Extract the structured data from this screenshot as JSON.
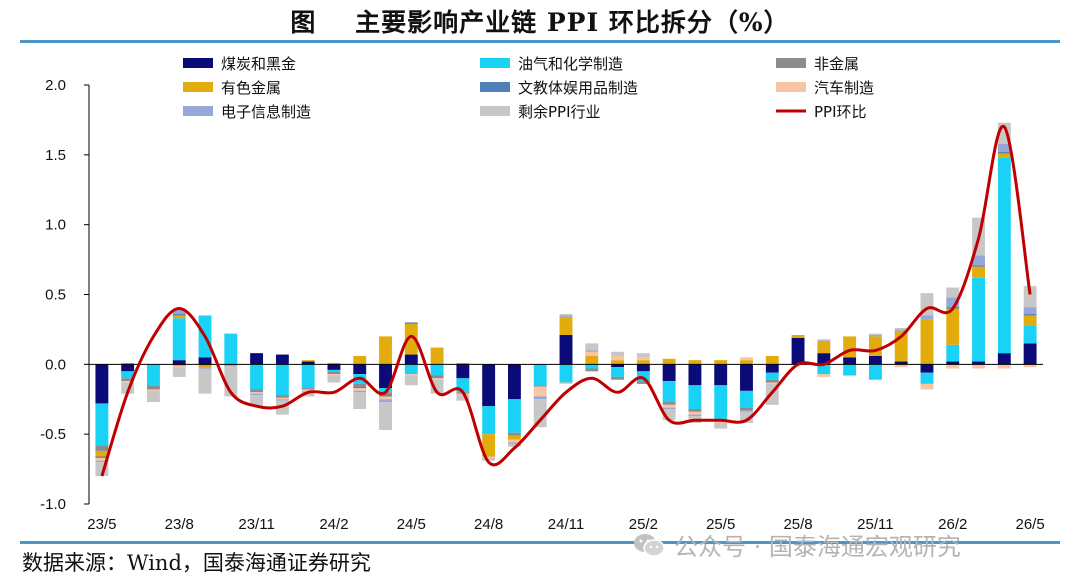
{
  "title": "图    主要影响产业链 PPI 环比拆分（%）",
  "source": "数据来源：Wind，国泰海通证券研究",
  "watermark": "公众号 · 国泰海通宏观研究",
  "colors": {
    "coal": "#0a0a78",
    "oil": "#19d2f5",
    "nonmetal": "#8c8c8c",
    "nonferrous": "#e2ad0c",
    "culture": "#4f81b8",
    "auto": "#f7c4a6",
    "electronics": "#97a7d8",
    "other": "#c7c7c7",
    "ppi": "#c00000"
  },
  "chart_data": {
    "type": "bar",
    "stacked": true,
    "ylim": [
      -1.0,
      2.0
    ],
    "yticks": [
      "2.0",
      "1.5",
      "1.0",
      "0.5",
      "0.0",
      "-0.5",
      "-1.0"
    ],
    "ytick_values": [
      2.0,
      1.5,
      1.0,
      0.5,
      0.0,
      -0.5,
      -1.0
    ],
    "categories": [
      "23/5",
      "23/6",
      "23/7",
      "23/8",
      "23/9",
      "23/10",
      "23/11",
      "23/12",
      "24/1",
      "24/2",
      "24/3",
      "24/4",
      "24/5",
      "24/6",
      "24/7",
      "24/8",
      "24/9",
      "24/10",
      "24/11",
      "24/12",
      "25/1",
      "25/2",
      "25/3",
      "25/4",
      "25/5",
      "25/6",
      "25/7",
      "25/8",
      "25/9",
      "25/10",
      "25/11",
      "25/12",
      "26/1",
      "26/2",
      "26/3",
      "26/4",
      "26/5"
    ],
    "x_tick_labels": [
      {
        "index": 0,
        "label": "23/5"
      },
      {
        "index": 3,
        "label": "23/8"
      },
      {
        "index": 6,
        "label": "23/11"
      },
      {
        "index": 9,
        "label": "24/2"
      },
      {
        "index": 12,
        "label": "24/5"
      },
      {
        "index": 15,
        "label": "24/8"
      },
      {
        "index": 18,
        "label": "24/11"
      },
      {
        "index": 21,
        "label": "25/2"
      },
      {
        "index": 24,
        "label": "25/5"
      },
      {
        "index": 27,
        "label": "25/8"
      },
      {
        "index": 30,
        "label": "25/11"
      },
      {
        "index": 33,
        "label": "26/2"
      },
      {
        "index": 36,
        "label": "26/5"
      }
    ],
    "legend_position": "top",
    "legend": [
      {
        "key": "coal",
        "label": "煤炭和黑金",
        "kind": "bar"
      },
      {
        "key": "oil",
        "label": "油气和化学制造",
        "kind": "bar"
      },
      {
        "key": "nonmetal",
        "label": "非金属",
        "kind": "bar"
      },
      {
        "key": "nonferrous",
        "label": "有色金属",
        "kind": "bar"
      },
      {
        "key": "culture",
        "label": "文教体娱用品制造",
        "kind": "bar"
      },
      {
        "key": "auto",
        "label": "汽车制造",
        "kind": "bar"
      },
      {
        "key": "electronics",
        "label": "电子信息制造",
        "kind": "bar"
      },
      {
        "key": "other",
        "label": "剩余PPI行业",
        "kind": "bar"
      },
      {
        "key": "ppi",
        "label": "PPI环比",
        "kind": "line"
      }
    ],
    "series": [
      {
        "key": "coal",
        "values": [
          -0.28,
          -0.05,
          0.0,
          0.03,
          0.05,
          0.0,
          0.08,
          0.07,
          0.02,
          -0.04,
          -0.07,
          -0.17,
          0.07,
          0.0,
          -0.1,
          -0.3,
          -0.25,
          0.0,
          0.21,
          0.0,
          -0.02,
          -0.05,
          -0.12,
          -0.15,
          -0.15,
          -0.19,
          -0.06,
          0.19,
          0.08,
          0.05,
          0.06,
          0.02,
          -0.06,
          0.02,
          0.02,
          0.08,
          0.15
        ]
      },
      {
        "key": "oil",
        "values": [
          -0.3,
          -0.05,
          -0.15,
          0.3,
          0.3,
          0.22,
          -0.18,
          -0.22,
          -0.17,
          -0.01,
          -0.07,
          -0.03,
          -0.07,
          -0.08,
          -0.1,
          -0.2,
          -0.24,
          -0.15,
          -0.13,
          -0.03,
          -0.07,
          -0.07,
          -0.15,
          -0.17,
          -0.24,
          -0.12,
          -0.05,
          0.0,
          -0.07,
          -0.08,
          -0.11,
          0.0,
          -0.08,
          0.12,
          0.6,
          1.4,
          0.13
        ]
      },
      {
        "key": "nonmetal",
        "values": [
          -0.04,
          -0.02,
          -0.03,
          -0.01,
          -0.01,
          -0.01,
          -0.02,
          -0.02,
          -0.01,
          -0.02,
          -0.02,
          -0.02,
          0.0,
          -0.02,
          -0.01,
          0.0,
          -0.02,
          -0.01,
          0.0,
          -0.02,
          -0.02,
          -0.02,
          -0.02,
          -0.02,
          -0.02,
          -0.02,
          -0.02,
          0.0,
          0.0,
          0.0,
          0.0,
          0.0,
          0.0,
          0.0,
          0.0,
          0.0,
          0.0
        ]
      },
      {
        "key": "nonferrous",
        "values": [
          -0.04,
          0.0,
          0.0,
          0.02,
          -0.01,
          0.0,
          0.0,
          0.0,
          0.01,
          0.01,
          0.06,
          0.2,
          0.22,
          0.12,
          0.01,
          -0.16,
          -0.03,
          0.0,
          0.13,
          0.06,
          0.03,
          0.03,
          0.04,
          0.03,
          0.03,
          0.03,
          0.06,
          0.02,
          0.08,
          0.15,
          0.14,
          0.22,
          0.32,
          0.26,
          0.08,
          0.03,
          0.07
        ]
      },
      {
        "key": "culture",
        "values": [
          -0.01,
          0.0,
          0.0,
          0.01,
          0.0,
          0.0,
          0.0,
          0.0,
          0.0,
          0.0,
          -0.01,
          -0.01,
          0.01,
          0.0,
          0.0,
          0.0,
          0.0,
          0.0,
          0.0,
          0.0,
          0.0,
          0.0,
          0.0,
          0.0,
          0.0,
          0.0,
          0.0,
          0.0,
          0.0,
          0.0,
          0.0,
          0.0,
          0.0,
          0.01,
          0.01,
          0.01,
          0.01
        ]
      },
      {
        "key": "auto",
        "values": [
          -0.02,
          -0.01,
          -0.01,
          -0.01,
          0.0,
          0.0,
          -0.01,
          -0.01,
          -0.01,
          -0.01,
          -0.02,
          -0.02,
          -0.01,
          -0.01,
          -0.01,
          -0.01,
          -0.02,
          -0.07,
          -0.01,
          0.03,
          0.03,
          0.02,
          -0.02,
          -0.02,
          -0.01,
          0.02,
          -0.01,
          0.0,
          -0.02,
          0.0,
          0.0,
          -0.02,
          -0.04,
          -0.03,
          -0.03,
          -0.03,
          -0.02
        ]
      },
      {
        "key": "electronics",
        "values": [
          -0.01,
          0.01,
          0.0,
          0.03,
          -0.01,
          0.0,
          -0.01,
          -0.01,
          0.0,
          0.0,
          -0.01,
          -0.02,
          0.0,
          0.0,
          0.0,
          0.0,
          -0.01,
          -0.02,
          0.01,
          0.01,
          0.0,
          0.0,
          -0.01,
          -0.01,
          0.0,
          -0.01,
          0.0,
          0.0,
          0.01,
          0.0,
          0.01,
          0.01,
          0.03,
          0.07,
          0.07,
          0.06,
          0.05
        ]
      },
      {
        "key": "other",
        "values": [
          -0.1,
          -0.08,
          -0.08,
          -0.07,
          -0.18,
          -0.22,
          -0.08,
          -0.1,
          -0.04,
          -0.05,
          -0.12,
          -0.2,
          -0.07,
          -0.1,
          -0.04,
          -0.02,
          -0.02,
          -0.2,
          0.01,
          0.05,
          0.03,
          0.03,
          -0.08,
          -0.05,
          -0.04,
          -0.08,
          -0.15,
          0.0,
          0.01,
          0.0,
          0.01,
          0.01,
          0.16,
          0.07,
          0.27,
          0.15,
          0.15
        ]
      }
    ],
    "ppi": [
      -0.8,
      -0.2,
      0.2,
      0.4,
      0.2,
      -0.2,
      -0.3,
      -0.3,
      -0.2,
      -0.2,
      -0.1,
      -0.2,
      0.2,
      -0.2,
      -0.2,
      -0.7,
      -0.6,
      -0.4,
      -0.2,
      -0.1,
      -0.2,
      -0.1,
      -0.4,
      -0.4,
      -0.4,
      -0.4,
      -0.2,
      0.0,
      0.0,
      0.1,
      0.1,
      0.2,
      0.4,
      0.4,
      0.9,
      1.7,
      0.5
    ]
  }
}
